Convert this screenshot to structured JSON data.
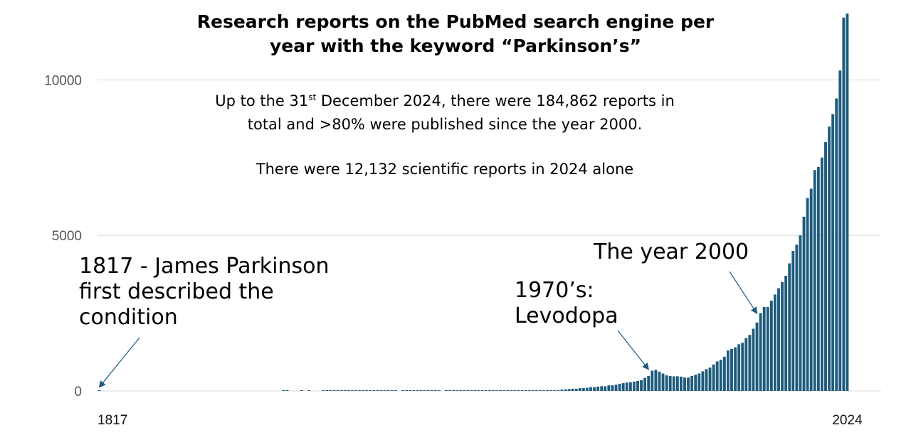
{
  "chart_data": {
    "type": "bar",
    "title_lines": [
      "Research reports on the PubMed search engine per",
      "year with the keyword “Parkinson’s”"
    ],
    "xlabel": "",
    "ylabel": "",
    "xlim": [
      1817,
      2024
    ],
    "ylim": [
      0,
      12132
    ],
    "grid": true,
    "y_ticks": [
      {
        "value": 0,
        "label": "0"
      },
      {
        "value": 5000,
        "label": "5000"
      },
      {
        "value": 10000,
        "label": "10000"
      }
    ],
    "x_ticks": [
      {
        "value": 1817,
        "label": "1817"
      },
      {
        "value": 2024,
        "label": "2024"
      }
    ],
    "bar_color": "#1e5b7d",
    "series": [
      {
        "points": [
          [
            1817,
            5
          ],
          [
            1868,
            15
          ],
          [
            1869,
            15
          ],
          [
            1873,
            12
          ],
          [
            1875,
            15
          ],
          [
            1879,
            10
          ],
          [
            1880,
            12
          ],
          [
            1881,
            12
          ],
          [
            1882,
            12
          ],
          [
            1883,
            12
          ],
          [
            1884,
            12
          ],
          [
            1885,
            12
          ],
          [
            1886,
            12
          ],
          [
            1887,
            12
          ],
          [
            1888,
            12
          ],
          [
            1889,
            12
          ],
          [
            1890,
            12
          ],
          [
            1891,
            12
          ],
          [
            1892,
            12
          ],
          [
            1893,
            12
          ],
          [
            1894,
            12
          ],
          [
            1895,
            12
          ],
          [
            1896,
            12
          ],
          [
            1897,
            12
          ],
          [
            1898,
            12
          ],
          [
            1899,
            12
          ],
          [
            1901,
            12
          ],
          [
            1902,
            12
          ],
          [
            1903,
            12
          ],
          [
            1904,
            12
          ],
          [
            1905,
            12
          ],
          [
            1906,
            12
          ],
          [
            1907,
            12
          ],
          [
            1908,
            12
          ],
          [
            1909,
            12
          ],
          [
            1910,
            12
          ],
          [
            1911,
            12
          ],
          [
            1913,
            12
          ],
          [
            1914,
            12
          ],
          [
            1915,
            12
          ],
          [
            1916,
            12
          ],
          [
            1917,
            12
          ],
          [
            1918,
            12
          ],
          [
            1919,
            12
          ],
          [
            1920,
            12
          ],
          [
            1921,
            12
          ],
          [
            1922,
            12
          ],
          [
            1923,
            12
          ],
          [
            1924,
            12
          ],
          [
            1925,
            12
          ],
          [
            1926,
            12
          ],
          [
            1927,
            12
          ],
          [
            1928,
            12
          ],
          [
            1929,
            12
          ],
          [
            1930,
            12
          ],
          [
            1931,
            12
          ],
          [
            1932,
            12
          ],
          [
            1933,
            12
          ],
          [
            1934,
            12
          ],
          [
            1935,
            12
          ],
          [
            1936,
            12
          ],
          [
            1937,
            12
          ],
          [
            1938,
            12
          ],
          [
            1939,
            12
          ],
          [
            1940,
            12
          ],
          [
            1941,
            15
          ],
          [
            1942,
            15
          ],
          [
            1943,
            20
          ],
          [
            1944,
            20
          ],
          [
            1945,
            40
          ],
          [
            1946,
            50
          ],
          [
            1947,
            60
          ],
          [
            1948,
            70
          ],
          [
            1949,
            70
          ],
          [
            1950,
            90
          ],
          [
            1951,
            90
          ],
          [
            1952,
            100
          ],
          [
            1953,
            120
          ],
          [
            1954,
            120
          ],
          [
            1955,
            140
          ],
          [
            1956,
            150
          ],
          [
            1957,
            150
          ],
          [
            1958,
            180
          ],
          [
            1959,
            180
          ],
          [
            1960,
            200
          ],
          [
            1961,
            230
          ],
          [
            1962,
            250
          ],
          [
            1963,
            270
          ],
          [
            1964,
            280
          ],
          [
            1965,
            300
          ],
          [
            1966,
            320
          ],
          [
            1967,
            350
          ],
          [
            1968,
            420
          ],
          [
            1969,
            480
          ],
          [
            1970,
            650
          ],
          [
            1971,
            680
          ],
          [
            1972,
            620
          ],
          [
            1973,
            560
          ],
          [
            1974,
            500
          ],
          [
            1975,
            480
          ],
          [
            1976,
            470
          ],
          [
            1977,
            470
          ],
          [
            1978,
            460
          ],
          [
            1979,
            430
          ],
          [
            1980,
            430
          ],
          [
            1981,
            480
          ],
          [
            1982,
            520
          ],
          [
            1983,
            560
          ],
          [
            1984,
            630
          ],
          [
            1985,
            700
          ],
          [
            1986,
            750
          ],
          [
            1987,
            850
          ],
          [
            1988,
            950
          ],
          [
            1989,
            1000
          ],
          [
            1990,
            1100
          ],
          [
            1991,
            1300
          ],
          [
            1992,
            1350
          ],
          [
            1993,
            1400
          ],
          [
            1994,
            1500
          ],
          [
            1995,
            1550
          ],
          [
            1996,
            1700
          ],
          [
            1997,
            1800
          ],
          [
            1998,
            2000
          ],
          [
            1999,
            2200
          ],
          [
            2000,
            2500
          ],
          [
            2001,
            2700
          ],
          [
            2002,
            2700
          ],
          [
            2003,
            2900
          ],
          [
            2004,
            3100
          ],
          [
            2005,
            3300
          ],
          [
            2006,
            3500
          ],
          [
            2007,
            3700
          ],
          [
            2008,
            4100
          ],
          [
            2009,
            4500
          ],
          [
            2010,
            4700
          ],
          [
            2011,
            5000
          ],
          [
            2012,
            5600
          ],
          [
            2013,
            6200
          ],
          [
            2014,
            6500
          ],
          [
            2015,
            7100
          ],
          [
            2016,
            7200
          ],
          [
            2017,
            7500
          ],
          [
            2018,
            8000
          ],
          [
            2019,
            8500
          ],
          [
            2020,
            8900
          ],
          [
            2021,
            9400
          ],
          [
            2022,
            10300
          ],
          [
            2023,
            12000
          ],
          [
            2024,
            12132
          ]
        ]
      }
    ],
    "notes": [
      {
        "pre": "Up to the 31",
        "sup": "st",
        "post": " December 2024, there were 184,862 reports in"
      },
      {
        "pre": "total and >80% were published since the year 2000.",
        "sup": "",
        "post": ""
      },
      {
        "pre": "There were 12,132 scientific reports in 2024 alone",
        "sup": "",
        "post": ""
      }
    ],
    "annotations": [
      {
        "lines": [
          "1817 - James Parkinson",
          "first described the",
          "condition"
        ],
        "x": 1817,
        "y": 30
      },
      {
        "lines": [
          "1970’s:",
          "Levodopa"
        ],
        "x": 1969,
        "y": 600
      },
      {
        "lines": [
          "The year 2000"
        ],
        "x": 1999,
        "y": 2400
      }
    ]
  }
}
